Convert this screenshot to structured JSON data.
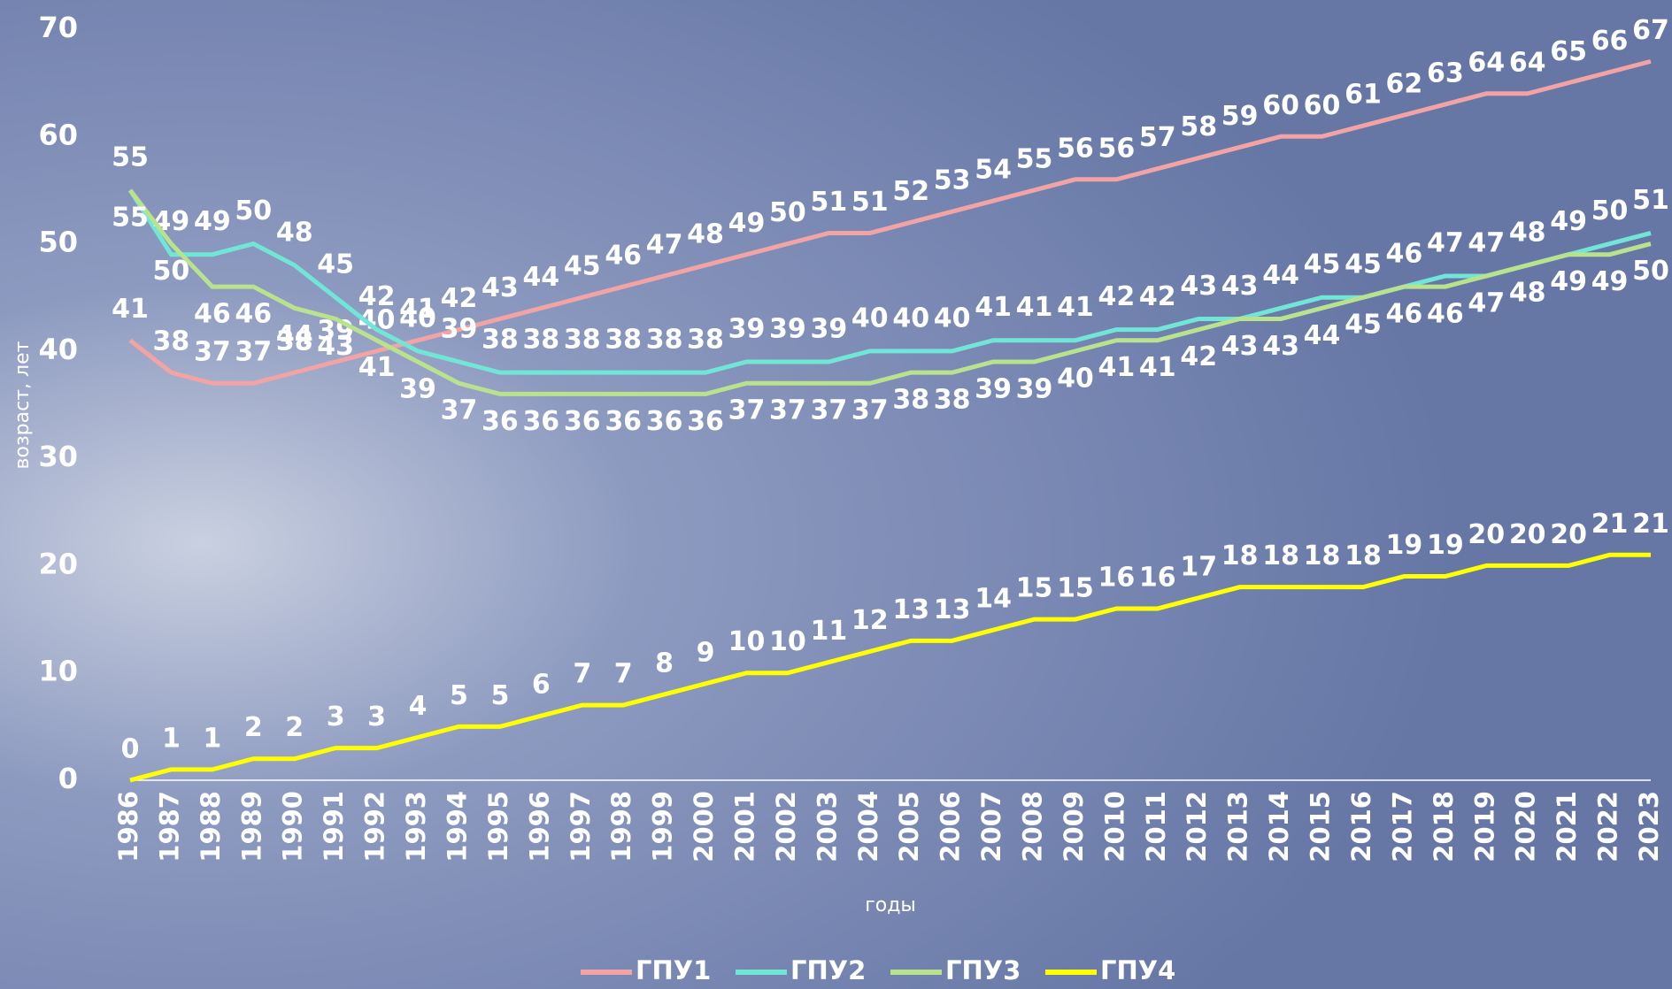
{
  "chart_data": {
    "type": "line",
    "y_label": "возраст, лет",
    "x_label": "годы",
    "categories": [
      "1986",
      "1987",
      "1988",
      "1989",
      "1990",
      "1991",
      "1992",
      "1993",
      "1994",
      "1995",
      "1996",
      "1997",
      "1998",
      "1999",
      "2000",
      "2001",
      "2002",
      "2003",
      "2004",
      "2005",
      "2006",
      "2007",
      "2008",
      "2009",
      "2010",
      "2011",
      "2012",
      "2013",
      "2014",
      "2015",
      "2016",
      "2017",
      "2018",
      "2019",
      "2020",
      "2021",
      "2022",
      "2023"
    ],
    "series": [
      {
        "name": "ГПУ1",
        "color": "#f2a3a3",
        "values": [
          41,
          38,
          37,
          37,
          38,
          39,
          40,
          41,
          42,
          43,
          44,
          45,
          46,
          47,
          48,
          49,
          50,
          51,
          51,
          52,
          53,
          54,
          55,
          56,
          56,
          57,
          58,
          59,
          60,
          60,
          61,
          62,
          63,
          64,
          64,
          65,
          66,
          67
        ]
      },
      {
        "name": "ГПУ2",
        "color": "#72e6d6",
        "values": [
          55,
          49,
          49,
          50,
          48,
          45,
          42,
          40,
          39,
          38,
          38,
          38,
          38,
          38,
          38,
          39,
          39,
          39,
          40,
          40,
          40,
          41,
          41,
          41,
          42,
          42,
          43,
          43,
          44,
          45,
          45,
          46,
          47,
          47,
          48,
          49,
          50,
          51
        ]
      },
      {
        "name": "ГПУ3",
        "color": "#b9e28e",
        "values": [
          55,
          50,
          46,
          46,
          44,
          43,
          41,
          39,
          37,
          36,
          36,
          36,
          36,
          36,
          36,
          37,
          37,
          37,
          37,
          38,
          38,
          39,
          39,
          40,
          41,
          41,
          42,
          43,
          43,
          44,
          45,
          46,
          46,
          47,
          48,
          49,
          49,
          50
        ]
      },
      {
        "name": "ГПУ4",
        "color": "#ffff00",
        "values": [
          0,
          1,
          1,
          2,
          2,
          3,
          3,
          4,
          5,
          5,
          6,
          7,
          7,
          8,
          9,
          10,
          10,
          11,
          12,
          13,
          13,
          14,
          15,
          15,
          16,
          16,
          17,
          18,
          18,
          18,
          18,
          19,
          19,
          20,
          20,
          20,
          21,
          21
        ]
      }
    ],
    "ylim": [
      0,
      70
    ],
    "yticks": [
      0,
      10,
      20,
      30,
      40,
      50,
      60,
      70
    ],
    "legend": "bottom"
  }
}
